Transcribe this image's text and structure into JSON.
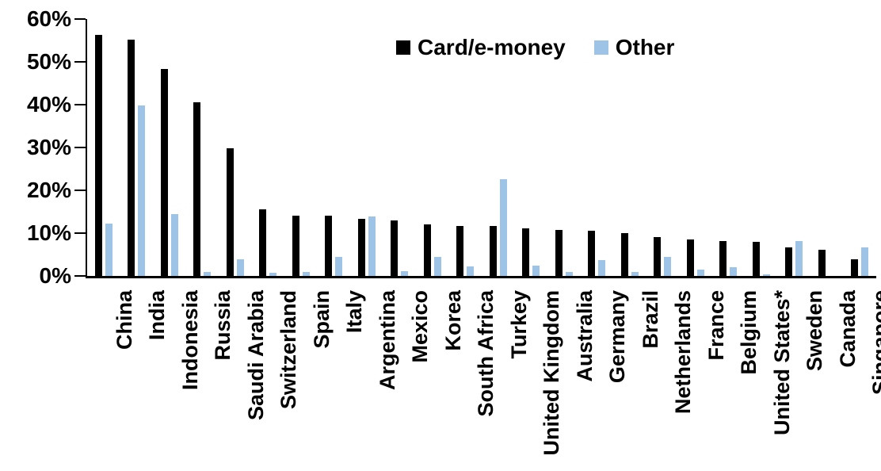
{
  "chart_data": {
    "type": "bar",
    "title": "",
    "xlabel": "",
    "ylabel": "",
    "ylim": [
      0,
      60
    ],
    "ytick_step": 10,
    "yticks": [
      "0%",
      "10%",
      "20%",
      "30%",
      "40%",
      "50%",
      "60%"
    ],
    "grid": false,
    "legend_position": "top-center",
    "categories": [
      "China",
      "India",
      "Indonesia",
      "Russia",
      "Saudi Arabia",
      "Switzerland",
      "Spain",
      "Italy",
      "Argentina",
      "Mexico",
      "Korea",
      "South Africa",
      "Turkey",
      "United Kingdom",
      "Australia",
      "Germany",
      "Brazil",
      "Netherlands",
      "France",
      "Belgium",
      "United States*",
      "Sweden",
      "Canada",
      "Singapore"
    ],
    "series": [
      {
        "name": "Card/e-money",
        "color": "#000000",
        "values": [
          56.3,
          55.2,
          48.4,
          40.6,
          29.8,
          15.5,
          14.1,
          14.0,
          13.3,
          12.9,
          12.1,
          11.7,
          11.7,
          11.2,
          10.8,
          10.5,
          10.0,
          9.1,
          8.6,
          8.1,
          7.9,
          6.7,
          6.1,
          3.9
        ]
      },
      {
        "name": "Other",
        "color": "#9DC3E6",
        "values": [
          12.2,
          39.9,
          14.5,
          1.0,
          3.8,
          0.7,
          0.9,
          4.4,
          13.8,
          1.2,
          4.5,
          2.3,
          22.6,
          2.4,
          1.0,
          3.7,
          1.0,
          4.5,
          1.4,
          2.0,
          0.3,
          8.2,
          0.0,
          6.7
        ]
      }
    ]
  }
}
